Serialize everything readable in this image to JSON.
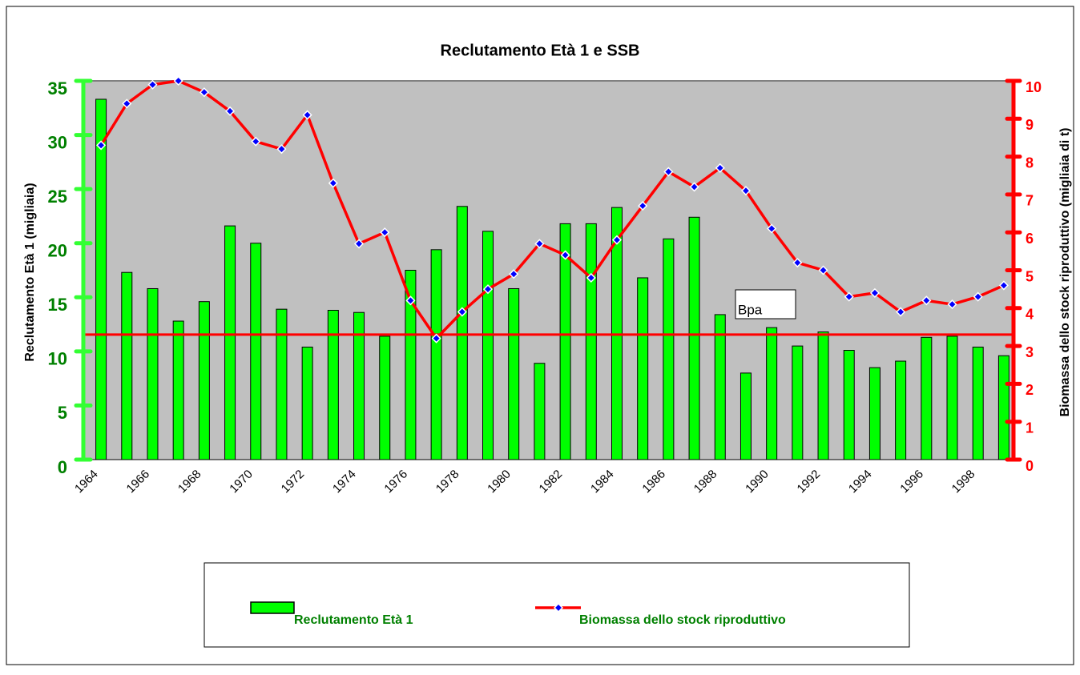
{
  "chart_data": {
    "type": "bar_line",
    "title": "Reclutamento Età 1 e SSB",
    "ylabel": "Reclutamento Età 1 (migliaia)",
    "y2label": "Biomassa dello stock riproduttivo (migliaia di t)",
    "categories": [
      "1964",
      null,
      "1966",
      null,
      "1968",
      null,
      "1970",
      null,
      "1972",
      null,
      "1974",
      null,
      "1976",
      null,
      "1978",
      null,
      "1980",
      null,
      "1982",
      null,
      "1984",
      null,
      "1986",
      null,
      "1988",
      null,
      "1990",
      null,
      "1992",
      null,
      "1994",
      null,
      "1996",
      null,
      "1998",
      null
    ],
    "series": [
      {
        "name": "Reclutamento Età 1",
        "type": "bar",
        "color": "#00ff00",
        "values": [
          33.3,
          17.3,
          15.8,
          12.8,
          14.6,
          21.6,
          20.0,
          13.9,
          10.4,
          13.8,
          13.6,
          11.4,
          17.5,
          19.4,
          23.4,
          21.1,
          15.8,
          8.9,
          21.8,
          21.8,
          23.3,
          16.8,
          20.4,
          22.4,
          13.4,
          8.0,
          12.2,
          10.5,
          11.8,
          10.1,
          8.5,
          9.1,
          11.3,
          11.4,
          10.4,
          9.6
        ]
      },
      {
        "name": "Biomassa dello stock riproduttivo",
        "type": "line",
        "axis": "y2",
        "color": "#ff0000",
        "marker_color": "#0000ff",
        "values": [
          8.3,
          9.4,
          9.9,
          10.0,
          9.7,
          9.2,
          8.4,
          8.2,
          9.1,
          7.3,
          5.7,
          6.0,
          4.2,
          3.2,
          3.9,
          4.5,
          4.9,
          5.7,
          5.4,
          4.8,
          5.8,
          6.7,
          7.6,
          7.2,
          7.7,
          7.1,
          6.1,
          5.2,
          5.0,
          4.3,
          4.4,
          3.9,
          4.2,
          4.1,
          4.3,
          4.6
        ]
      }
    ],
    "ylim": [
      0,
      35
    ],
    "yticks": [
      0,
      5,
      10,
      15,
      20,
      25,
      30,
      35
    ],
    "ycolor": "#008000",
    "y2lim": [
      0,
      10
    ],
    "y2ticks": [
      0,
      1,
      2,
      3,
      4,
      5,
      6,
      7,
      8,
      9,
      10
    ],
    "y2color": "#ff0000",
    "reference_line": {
      "label": "Bpa",
      "value": 3.3,
      "axis": "y2",
      "color": "#ff0000"
    },
    "plot_background": "#c0c0c0",
    "legend": "bottom"
  }
}
